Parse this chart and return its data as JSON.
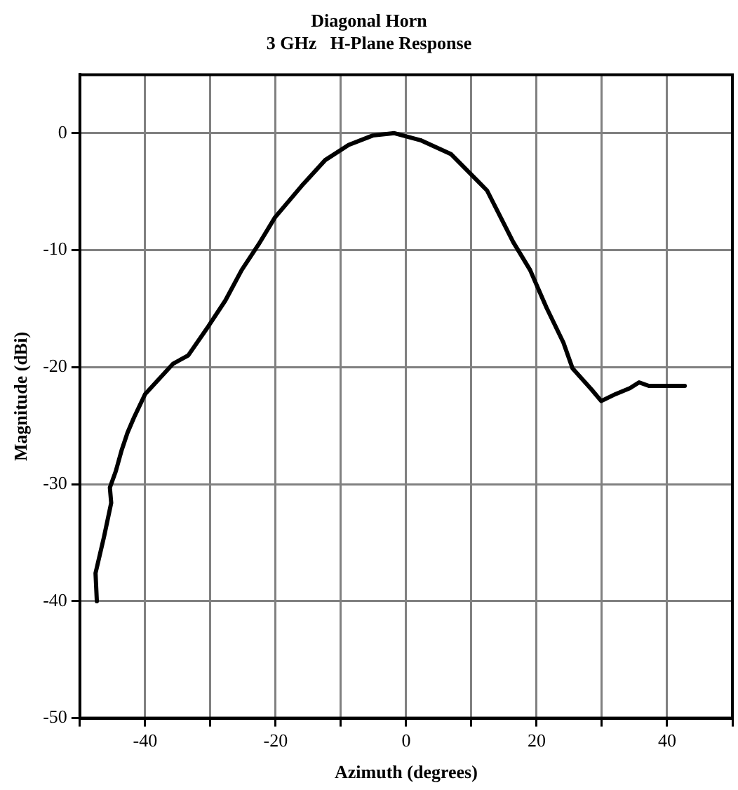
{
  "chart_data": {
    "type": "line",
    "title": [
      "Diagonal Horn",
      "3 GHz   H-Plane Response"
    ],
    "xlabel": "Azimuth (degrees)",
    "ylabel": "Magnitude (dBi)",
    "xlim": [
      -50,
      50
    ],
    "xticks": [
      {
        "value": -50,
        "label": null
      },
      -40,
      {
        "value": -30,
        "label": null
      },
      -20,
      {
        "value": -10,
        "label": null
      },
      0,
      {
        "value": 10,
        "label": null
      },
      20,
      {
        "value": 30,
        "label": null
      },
      40,
      {
        "value": 50,
        "label": null
      }
    ],
    "ylim": [
      -50,
      5
    ],
    "yticks": [
      -50,
      -40,
      -30,
      -20,
      -10,
      0
    ],
    "grid": true,
    "legend": false,
    "marker": "none",
    "line_style": "solid",
    "series": [
      {
        "color": "#000000",
        "x": [
          -47.4,
          -47.6,
          -46.3,
          -45.2,
          -45.4,
          -44.5,
          -43.6,
          -42.7,
          -41.7,
          -40,
          -35.7,
          -33.4,
          -30.3,
          -27.7,
          -25.2,
          -22.6,
          -20.1,
          -16,
          -12.4,
          -8.8,
          -5.1,
          -1.8,
          2.2,
          6.9,
          12.4,
          16.4,
          19,
          21.5,
          24.1,
          25.5,
          28.4,
          29.9,
          32.1,
          34.3,
          35.7,
          37.2,
          42.7
        ],
        "values": [
          -40,
          -37.6,
          -34.5,
          -31.6,
          -30.3,
          -28.9,
          -27.1,
          -25.6,
          -24.3,
          -22.3,
          -19.7,
          -19,
          -16.5,
          -14.3,
          -11.7,
          -9.5,
          -7.2,
          -4.5,
          -2.3,
          -1,
          -0.2,
          0,
          -0.6,
          -1.8,
          -4.9,
          -9.3,
          -11.7,
          -14.9,
          -17.9,
          -20.1,
          -21.9,
          -22.9,
          -22.3,
          -21.8,
          -21.3,
          -21.6,
          -21.6
        ]
      }
    ]
  }
}
